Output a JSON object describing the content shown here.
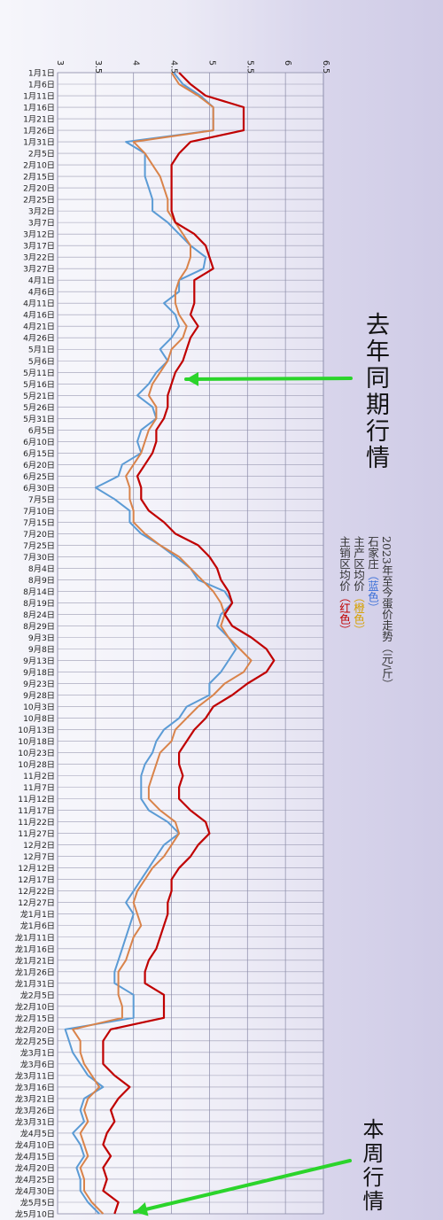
{
  "chart_data": {
    "type": "line",
    "title": "2023年至今蛋价走势（元/斤）",
    "legend": [
      {
        "name": "石家庄",
        "note": "（蓝色）",
        "color": "#5b9bd5"
      },
      {
        "name": "主产区均价",
        "note": "（橙色）",
        "color": "#d9834a"
      },
      {
        "name": "主销区均价",
        "note": "（红色）",
        "color": "#c00000"
      }
    ],
    "value_axis": {
      "min": 3,
      "max": 6.5,
      "ticks": [
        "3",
        "3.5",
        "4",
        "4.5",
        "5",
        "5.5",
        "6",
        "6.5"
      ]
    },
    "categories": [
      "1月1日",
      "1月6日",
      "1月11日",
      "1月16日",
      "1月21日",
      "1月26日",
      "1月31日",
      "2月5日",
      "2月10日",
      "2月15日",
      "2月20日",
      "2月25日",
      "3月2日",
      "3月7日",
      "3月12日",
      "3月17日",
      "3月22日",
      "3月27日",
      "4月1日",
      "4月6日",
      "4月11日",
      "4月16日",
      "4月21日",
      "4月26日",
      "5月1日",
      "5月6日",
      "5月11日",
      "5月16日",
      "5月21日",
      "5月26日",
      "5月31日",
      "6月5日",
      "6月10日",
      "6月15日",
      "6月20日",
      "6月25日",
      "6月30日",
      "7月5日",
      "7月10日",
      "7月15日",
      "7月20日",
      "7月25日",
      "7月30日",
      "8月4日",
      "8月9日",
      "8月14日",
      "8月19日",
      "8月24日",
      "8月29日",
      "9月3日",
      "9月8日",
      "9月13日",
      "9月18日",
      "9月23日",
      "9月28日",
      "10月3日",
      "10月8日",
      "10月13日",
      "10月18日",
      "10月23日",
      "10月28日",
      "11月2日",
      "11月7日",
      "11月12日",
      "11月17日",
      "11月22日",
      "11月27日",
      "12月2日",
      "12月7日",
      "12月12日",
      "12月17日",
      "12月22日",
      "12月27日",
      "龙1月1日",
      "龙1月6日",
      "龙1月11日",
      "龙1月16日",
      "龙1月21日",
      "龙1月26日",
      "龙1月31日",
      "龙2月5日",
      "龙2月10日",
      "龙2月15日",
      "龙2月20日",
      "龙2月25日",
      "龙3月1日",
      "龙3月6日",
      "龙3月11日",
      "龙3月16日",
      "龙3月21日",
      "龙3月26日",
      "龙3月31日",
      "龙4月5日",
      "龙4月10日",
      "龙4月15日",
      "龙4月20日",
      "龙4月25日",
      "龙4月30日",
      "龙5月5日",
      "龙5月10日"
    ],
    "series": [
      {
        "name": "石家庄",
        "color": "#5b9bd5",
        "values": [
          4.53,
          4.65,
          4.88,
          5.05,
          5.05,
          5.05,
          3.9,
          4.15,
          4.15,
          4.15,
          4.2,
          4.25,
          4.25,
          4.45,
          4.6,
          4.75,
          4.95,
          4.92,
          4.6,
          4.6,
          4.4,
          4.55,
          4.6,
          4.5,
          4.35,
          4.45,
          4.3,
          4.2,
          4.05,
          4.25,
          4.3,
          4.1,
          4.05,
          4.1,
          3.85,
          3.8,
          3.5,
          3.75,
          3.95,
          3.95,
          4.1,
          4.35,
          4.55,
          4.75,
          4.85,
          5.2,
          5.3,
          5.15,
          5.1,
          5.25,
          5.35,
          5.25,
          5.15,
          5.0,
          5.0,
          4.7,
          4.6,
          4.4,
          4.3,
          4.25,
          4.15,
          4.1,
          4.1,
          4.1,
          4.2,
          4.45,
          4.6,
          4.4,
          4.3,
          4.2,
          4.1,
          4.0,
          3.9,
          4.0,
          3.95,
          3.9,
          3.85,
          3.8,
          3.75,
          3.75,
          4.0,
          4.0,
          4.0,
          3.1,
          3.15,
          3.2,
          3.3,
          3.4,
          3.6,
          3.35,
          3.3,
          3.35,
          3.2,
          3.3,
          3.35,
          3.25,
          3.3,
          3.3,
          3.4,
          3.55
        ]
      },
      {
        "name": "主产区均价",
        "color": "#d9834a",
        "values": [
          4.5,
          4.6,
          4.85,
          5.05,
          5.05,
          5.05,
          4.0,
          4.15,
          4.25,
          4.35,
          4.4,
          4.45,
          4.45,
          4.55,
          4.65,
          4.75,
          4.75,
          4.7,
          4.6,
          4.55,
          4.55,
          4.6,
          4.7,
          4.65,
          4.5,
          4.45,
          4.35,
          4.25,
          4.2,
          4.3,
          4.3,
          4.2,
          4.15,
          4.1,
          4.0,
          3.9,
          3.95,
          3.95,
          4.0,
          4.0,
          4.15,
          4.35,
          4.6,
          4.75,
          4.9,
          5.05,
          5.15,
          5.2,
          5.15,
          5.25,
          5.4,
          5.55,
          5.45,
          5.2,
          5.05,
          4.85,
          4.7,
          4.55,
          4.5,
          4.35,
          4.3,
          4.25,
          4.2,
          4.2,
          4.35,
          4.55,
          4.6,
          4.5,
          4.4,
          4.25,
          4.15,
          4.05,
          4.0,
          4.05,
          4.1,
          4.0,
          3.95,
          3.9,
          3.8,
          3.8,
          3.8,
          3.85,
          3.85,
          3.2,
          3.3,
          3.3,
          3.35,
          3.45,
          3.55,
          3.4,
          3.35,
          3.4,
          3.3,
          3.35,
          3.4,
          3.3,
          3.35,
          3.35,
          3.45,
          3.6
        ]
      },
      {
        "name": "主销区均价",
        "color": "#c00000",
        "values": [
          4.6,
          4.75,
          4.95,
          5.45,
          5.45,
          5.45,
          4.75,
          4.6,
          4.5,
          4.5,
          4.5,
          4.5,
          4.5,
          4.55,
          4.8,
          4.95,
          5.0,
          5.05,
          4.8,
          4.8,
          4.8,
          4.75,
          4.85,
          4.75,
          4.7,
          4.65,
          4.55,
          4.5,
          4.45,
          4.45,
          4.4,
          4.3,
          4.3,
          4.25,
          4.15,
          4.05,
          4.1,
          4.1,
          4.2,
          4.4,
          4.55,
          4.85,
          5.0,
          5.1,
          5.15,
          5.25,
          5.3,
          5.2,
          5.3,
          5.55,
          5.75,
          5.85,
          5.75,
          5.5,
          5.3,
          5.05,
          4.95,
          4.8,
          4.7,
          4.6,
          4.6,
          4.65,
          4.6,
          4.6,
          4.75,
          4.95,
          5.0,
          4.85,
          4.75,
          4.6,
          4.5,
          4.5,
          4.45,
          4.45,
          4.4,
          4.35,
          4.3,
          4.2,
          4.15,
          4.15,
          4.4,
          4.4,
          4.4,
          3.7,
          3.6,
          3.6,
          3.6,
          3.75,
          3.95,
          3.8,
          3.7,
          3.75,
          3.65,
          3.6,
          3.7,
          3.6,
          3.65,
          3.6,
          3.8,
          3.75
        ]
      }
    ]
  },
  "annotations": {
    "last_year": "去年同期行情",
    "this_week": "本周行情"
  }
}
